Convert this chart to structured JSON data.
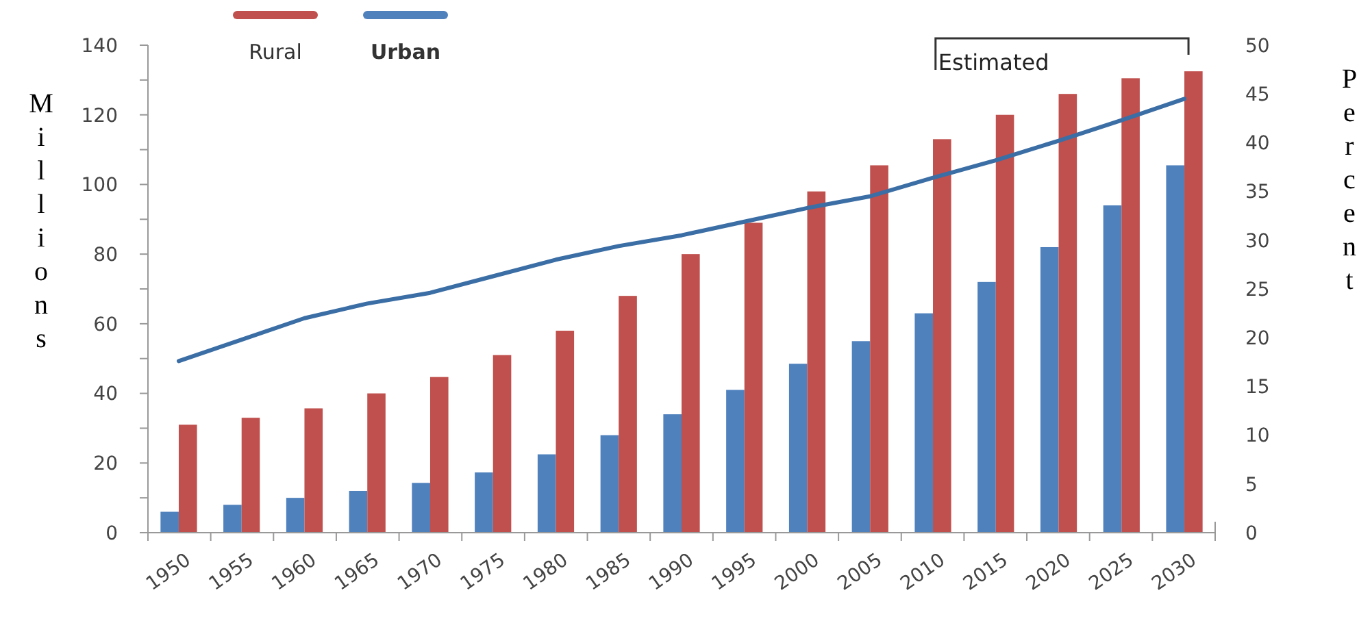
{
  "chart_data": {
    "type": "bar",
    "categories": [
      "1950",
      "1955",
      "1960",
      "1965",
      "1970",
      "1975",
      "1980",
      "1985",
      "1990",
      "1995",
      "2000",
      "2005",
      "2010",
      "2015",
      "2020",
      "2025",
      "2030"
    ],
    "series": [
      {
        "name": "Urban",
        "color": "#4f81bd",
        "values": [
          6,
          8,
          10,
          12,
          14.3,
          17.3,
          22.5,
          28,
          34,
          41,
          48.5,
          55,
          63,
          72,
          82,
          94,
          105.5
        ]
      },
      {
        "name": "Rural",
        "color": "#c0504d",
        "values": [
          31,
          33,
          35.7,
          40,
          44.7,
          51,
          58,
          68,
          80,
          89,
          98,
          105.5,
          113,
          120,
          126,
          130.5,
          132.5
        ]
      },
      {
        "type": "line",
        "axis": "y2",
        "color": "#3b6ea5",
        "values": [
          17.6,
          19.8,
          22,
          23.5,
          24.6,
          26.3,
          28,
          29.4,
          30.5,
          31.9,
          33.3,
          34.5,
          36.4,
          38.2,
          40.2,
          42.3,
          44.5
        ]
      }
    ],
    "ylabel": "Millions",
    "y2label": "Percent",
    "ylim": [
      0,
      140
    ],
    "yticks": [
      0,
      {
        "value": 10,
        "label": null
      },
      20,
      {
        "value": 30,
        "label": null
      },
      40,
      {
        "value": 50,
        "label": null
      },
      60,
      {
        "value": 70,
        "label": null
      },
      80,
      {
        "value": 90,
        "label": null
      },
      100,
      {
        "value": 110,
        "label": null
      },
      120,
      {
        "value": 130,
        "label": null
      },
      140
    ],
    "y2lim": [
      0,
      50
    ],
    "y2ticks": [
      0,
      5,
      10,
      15,
      20,
      25,
      30,
      35,
      40,
      45,
      50
    ],
    "annotations": [
      "Estimated"
    ],
    "legend": "top left",
    "grid": false
  }
}
